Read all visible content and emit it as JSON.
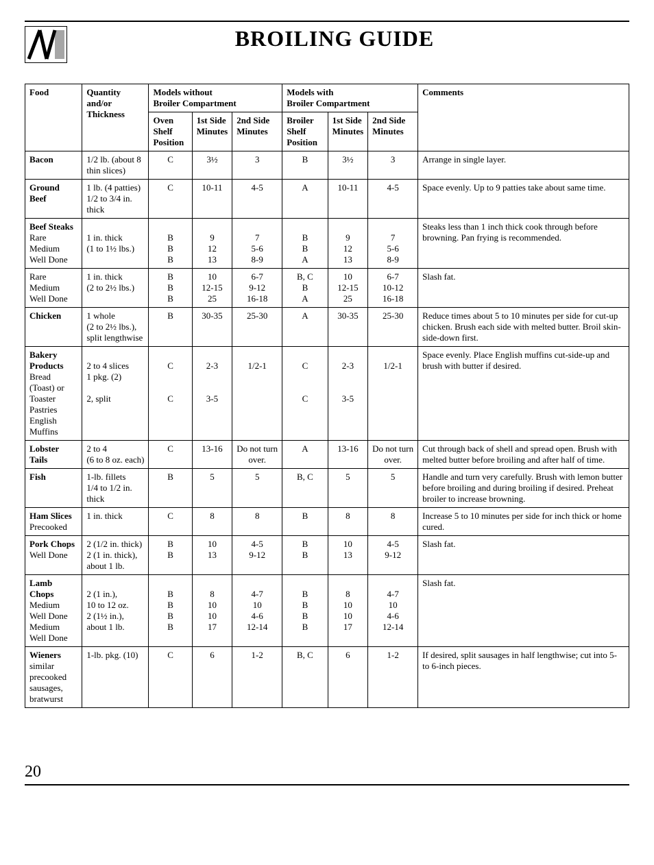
{
  "title": "BROILING GUIDE",
  "page_number": "20",
  "group_without": "Models without\nBroiler Compartment",
  "group_with": "Models with\nBroiler Compartment",
  "headers": {
    "food": "Food",
    "qty": "Quantity and/or\nThickness",
    "oven_pos": "Oven Shelf\nPosition",
    "first_min": "1st Side\nMinutes",
    "second_min": "2nd Side\nMinutes",
    "broiler_pos": "Broiler Shelf\nPosition",
    "comments": "Comments"
  },
  "rows": [
    {
      "food": "Bacon",
      "qty": "1/2 lb. (about 8 thin slices)",
      "oven_pos": "C",
      "first1": "3½",
      "second1": "3",
      "broil_pos": "B",
      "first2": "3½",
      "second2": "3",
      "comments": "Arrange in single layer."
    },
    {
      "food": "Ground Beef",
      "qty": "1 lb. (4 patties)\n1/2 to 3/4 in. thick",
      "oven_pos": "C",
      "first1": "10-11",
      "second1": "4-5",
      "broil_pos": "A",
      "first2": "10-11",
      "second2": "4-5",
      "comments": "Space evenly. Up to 9 patties take about same time."
    },
    {
      "food": "Beef Steaks\nRare\nMedium\nWell Done",
      "qty": "\n1 in. thick\n(1 to 1½ lbs.)",
      "oven_pos": "\nB\nB\nB",
      "first1": "\n9\n12\n13",
      "second1": "\n7\n5-6\n8-9",
      "broil_pos": "\nB\nB\nA",
      "first2": "\n9\n12\n13",
      "second2": "\n7\n5-6\n8-9",
      "comments": "Steaks less than 1 inch thick cook through before browning. Pan frying is recommended."
    },
    {
      "food": "Rare\nMedium\nWell Done",
      "qty": "1 in. thick\n(2 to 2½ lbs.)",
      "oven_pos": "B\nB\nB",
      "first1": "10\n12-15\n25",
      "second1": "6-7\n9-12\n16-18",
      "broil_pos": "B, C\nB\nA",
      "first2": "10\n12-15\n25",
      "second2": "6-7\n10-12\n16-18",
      "comments": "Slash fat.",
      "no_top_border": true
    },
    {
      "food": "Chicken",
      "qty": "1 whole\n(2 to 2½ lbs.),\nsplit lengthwise",
      "oven_pos": "B",
      "first1": "30-35",
      "second1": "25-30",
      "broil_pos": "A",
      "first2": "30-35",
      "second2": "25-30",
      "comments": "Reduce times about 5 to 10 minutes per side for cut-up chicken. Brush each side with melted butter. Broil skin-side-down first."
    },
    {
      "food": "Bakery Products\nBread (Toast) or\nToaster Pastries\n\nEnglish Muffins",
      "qty": "\n2 to 4 slices\n1 pkg. (2)\n\n2, split",
      "oven_pos": "\nC\n\n\nC",
      "first1": "\n2-3\n\n\n3-5",
      "second1": "\n1/2-1",
      "broil_pos": "\nC\n\n\nC",
      "first2": "\n2-3\n\n\n3-5",
      "second2": "\n1/2-1",
      "comments": "Space evenly. Place English muffins cut-side-up and brush with butter if desired."
    },
    {
      "food": "Lobster Tails",
      "qty": "2 to 4\n(6 to 8 oz. each)",
      "oven_pos": "C",
      "first1": "13-16",
      "second1": "Do not turn over.",
      "broil_pos": "A",
      "first2": "13-16",
      "second2": "Do not turn over.",
      "comments": "Cut through back of shell and spread open. Brush with melted butter before broiling and after half of time."
    },
    {
      "food": "Fish",
      "qty": "1-lb. fillets\n1/4 to 1/2 in. thick",
      "oven_pos": "B",
      "first1": "5",
      "second1": "5",
      "broil_pos": "B, C",
      "first2": "5",
      "second2": "5",
      "comments": "Handle and turn very carefully. Brush with lemon butter before broiling and during broiling if desired. Preheat broiler to increase browning."
    },
    {
      "food": "Ham Slices\nPrecooked",
      "qty": "1 in. thick",
      "oven_pos": "C",
      "first1": "8",
      "second1": "8",
      "broil_pos": "B",
      "first2": "8",
      "second2": "8",
      "comments": "Increase 5 to 10 minutes per side for inch thick or home cured."
    },
    {
      "food": "Pork Chops\nWell Done",
      "qty": "2 (1/2 in. thick)\n2 (1 in. thick),\nabout 1 lb.",
      "oven_pos": "B\nB",
      "first1": "10\n13",
      "second1": "4-5\n9-12",
      "broil_pos": "B\nB",
      "first2": "10\n13",
      "second2": "4-5\n9-12",
      "comments": "Slash fat."
    },
    {
      "food": "Lamb Chops\nMedium\nWell Done\nMedium\nWell Done",
      "qty": "\n2 (1 in.),\n10 to 12 oz.\n2 (1½ in.),\nabout 1 lb.",
      "oven_pos": "\nB\nB\nB\nB",
      "first1": "\n8\n10\n10\n17",
      "second1": "\n4-7\n10\n4-6\n12-14",
      "broil_pos": "\nB\nB\nB\nB",
      "first2": "\n8\n10\n10\n17",
      "second2": "\n4-7\n10\n4-6\n12-14",
      "comments": "Slash fat."
    },
    {
      "food": "Wieners\nsimilar precooked\nsausages, bratwurst",
      "qty": "1-lb. pkg. (10)",
      "oven_pos": "C",
      "first1": "6",
      "second1": "1-2",
      "broil_pos": "B, C",
      "first2": "6",
      "second2": "1-2",
      "comments": "If desired, split sausages in half lengthwise; cut into 5- to 6-inch pieces."
    }
  ]
}
